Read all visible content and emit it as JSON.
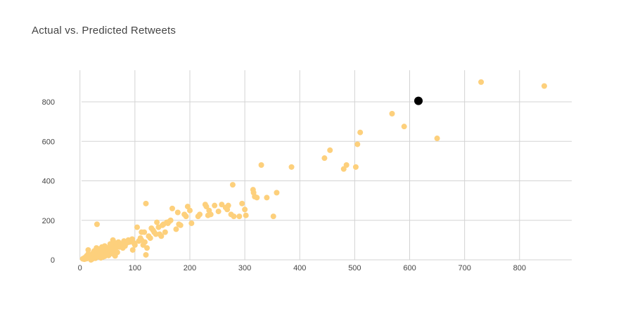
{
  "chart_data": {
    "type": "scatter",
    "title": "Actual vs. Predicted Retweets",
    "xlabel": "",
    "ylabel": "",
    "xlim": [
      -15,
      895
    ],
    "ylim": [
      0,
      960
    ],
    "x_ticks": [
      0,
      100,
      200,
      300,
      400,
      500,
      600,
      700,
      800
    ],
    "y_ticks": [
      0,
      200,
      400,
      600,
      800
    ],
    "grid": true,
    "legend": "none",
    "colors": {
      "points": "#fdd07c",
      "highlight": "#000000",
      "grid": "#d3d3d3"
    },
    "series": [
      {
        "x": [
          5,
          8,
          10,
          12,
          14,
          15,
          16,
          18,
          20,
          22,
          24,
          25,
          26,
          28,
          30,
          30,
          32,
          34,
          35,
          36,
          38,
          40,
          40,
          42,
          44,
          45,
          46,
          48,
          50,
          50,
          52,
          55,
          55,
          58,
          60,
          60,
          62,
          65,
          65,
          68,
          70,
          72,
          75,
          78,
          80,
          82,
          85,
          88,
          90,
          95,
          8,
          12,
          18,
          22,
          28,
          33,
          38,
          45,
          52,
          60,
          15,
          25,
          35,
          48,
          58,
          68,
          78,
          20,
          42,
          64,
          100,
          104,
          107,
          110,
          112,
          115,
          118,
          120,
          122,
          125,
          128,
          130,
          133,
          135,
          138,
          140,
          143,
          145,
          148,
          150,
          152,
          155,
          158,
          160,
          163,
          165,
          168,
          96,
          98,
          112,
          117,
          31,
          120,
          175,
          178,
          180,
          183,
          190,
          193,
          196,
          200,
          203,
          215,
          218,
          228,
          230,
          233,
          235,
          238,
          245,
          252,
          258,
          265,
          268,
          270,
          275,
          278,
          280,
          290,
          295,
          300,
          302,
          315,
          316,
          318,
          322,
          330,
          340,
          352,
          358,
          385,
          445,
          455,
          480,
          485,
          502,
          505,
          510,
          568,
          590,
          650,
          730,
          845
        ],
        "y": [
          5,
          10,
          8,
          20,
          15,
          30,
          12,
          25,
          10,
          18,
          35,
          22,
          45,
          15,
          30,
          60,
          25,
          40,
          20,
          55,
          35,
          28,
          65,
          45,
          30,
          70,
          50,
          40,
          35,
          60,
          55,
          80,
          45,
          65,
          100,
          50,
          75,
          60,
          85,
          70,
          90,
          65,
          80,
          75,
          95,
          70,
          85,
          100,
          90,
          105,
          3,
          6,
          12,
          4,
          8,
          15,
          10,
          18,
          22,
          30,
          50,
          38,
          48,
          28,
          44,
          38,
          60,
          0,
          15,
          20,
          75,
          165,
          95,
          110,
          140,
          75,
          90,
          285,
          60,
          120,
          110,
          160,
          150,
          140,
          130,
          190,
          165,
          130,
          120,
          175,
          180,
          140,
          190,
          185,
          195,
          200,
          260,
          50,
          85,
          100,
          140,
          180,
          25,
          155,
          240,
          180,
          175,
          230,
          220,
          270,
          250,
          185,
          220,
          230,
          280,
          270,
          225,
          250,
          230,
          275,
          245,
          280,
          265,
          255,
          275,
          230,
          380,
          220,
          220,
          285,
          255,
          225,
          355,
          340,
          320,
          315,
          480,
          315,
          220,
          340,
          470,
          515,
          555,
          460,
          480,
          470,
          585,
          645,
          740,
          675,
          615,
          900,
          880
        ],
        "color": "#fdd07c"
      },
      {
        "x": [
          616
        ],
        "y": [
          805
        ],
        "color": "#000000"
      }
    ]
  }
}
